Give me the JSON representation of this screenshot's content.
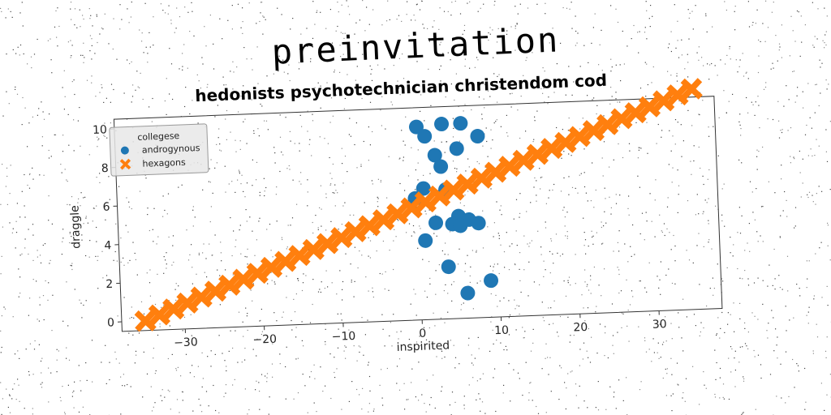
{
  "heading": "preinvitation",
  "chart_data": {
    "type": "scatter",
    "title": "hedonists psychotechnician christendom cod",
    "xlabel": "inspirited",
    "ylabel": "draggle",
    "xlim": [
      -38,
      38
    ],
    "ylim": [
      -0.5,
      10.5
    ],
    "xticks": [
      -30,
      -20,
      -10,
      0,
      10,
      20,
      30
    ],
    "yticks": [
      0,
      2,
      4,
      6,
      8,
      10
    ],
    "grid": false,
    "legend": {
      "title": "collegese",
      "position": "top-left"
    },
    "series": [
      {
        "name": "androgynous",
        "marker": "circle",
        "color": "#1f77b4",
        "x": [
          0.2,
          3.4,
          5.8,
          1.2,
          7.9,
          2.4,
          5.2,
          3.1,
          0.8,
          3.6,
          -0.3,
          2.2,
          5.1,
          4.3,
          6.4,
          7.6,
          5.3,
          0.8,
          3.6,
          8.9,
          5.9
        ],
        "y": [
          9.5,
          9.6,
          9.6,
          9.0,
          8.9,
          8.0,
          8.3,
          7.4,
          6.3,
          6.2,
          5.8,
          4.5,
          4.8,
          4.4,
          4.6,
          4.4,
          4.3,
          3.6,
          2.2,
          1.4,
          0.8
        ]
      },
      {
        "name": "hexagons",
        "marker": "x",
        "color": "#ff7f0e",
        "x": [
          -35,
          -33.2,
          -31.4,
          -29.6,
          -27.8,
          -26,
          -24.2,
          -22.4,
          -20.6,
          -18.8,
          -17,
          -15.2,
          -13.4,
          -11.6,
          -9.8,
          -8,
          -6.2,
          -4.4,
          -2.6,
          -0.8,
          1,
          2.8,
          4.6,
          6.4,
          8.2,
          10,
          11.8,
          13.6,
          15.4,
          17.2,
          19,
          20.8,
          22.6,
          24.4,
          26.2,
          28,
          29.8,
          31.6,
          33.4,
          35.2
        ],
        "y": [
          0,
          0.28,
          0.56,
          0.84,
          1.12,
          1.4,
          1.68,
          1.96,
          2.24,
          2.52,
          2.8,
          3.08,
          3.36,
          3.64,
          3.92,
          4.2,
          4.48,
          4.76,
          5.04,
          5.32,
          5.6,
          5.88,
          6.16,
          6.44,
          6.72,
          7,
          7.28,
          7.56,
          7.84,
          8.12,
          8.4,
          8.68,
          8.96,
          9.24,
          9.52,
          9.8,
          10.08,
          10.36,
          10.64,
          10.92
        ]
      }
    ]
  }
}
